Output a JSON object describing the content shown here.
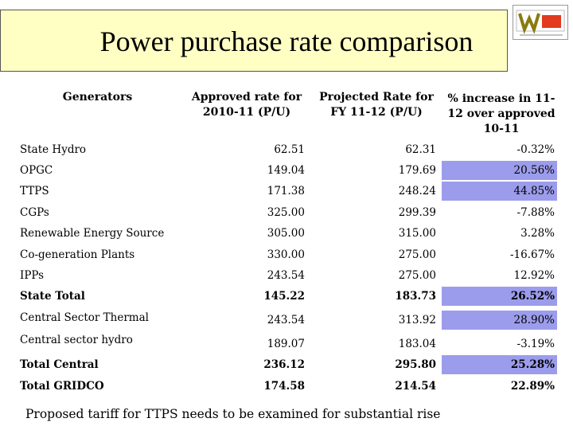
{
  "header": {
    "title": "Power purchase rate comparison"
  },
  "table": {
    "columns": [
      "Generators",
      "Approved rate for 2010-11 (P/U)",
      "Projected Rate for FY 11-12 (P/U)",
      "% increase in 11-12 over approved 10-11"
    ],
    "rows": [
      {
        "cells": [
          "State Hydro",
          "62.51",
          "62.31",
          "-0.32%"
        ],
        "bold": false,
        "highlight": false
      },
      {
        "cells": [
          "OPGC",
          "149.04",
          "179.69",
          "20.56%"
        ],
        "bold": false,
        "highlight": true
      },
      {
        "cells": [
          "TTPS",
          "171.38",
          "248.24",
          "44.85%"
        ],
        "bold": false,
        "highlight": true
      },
      {
        "cells": [
          "CGPs",
          "325.00",
          "299.39",
          "-7.88%"
        ],
        "bold": false,
        "highlight": false
      },
      {
        "cells": [
          "Renewable Energy Source",
          "305.00",
          "315.00",
          "3.28%"
        ],
        "bold": false,
        "highlight": false
      },
      {
        "cells": [
          "Co-generation Plants",
          "330.00",
          "275.00",
          "-16.67%"
        ],
        "bold": false,
        "highlight": false
      },
      {
        "cells": [
          "IPPs",
          "243.54",
          "275.00",
          "12.92%"
        ],
        "bold": false,
        "highlight": false
      },
      {
        "cells": [
          "State Total",
          "145.22",
          "183.73",
          "26.52%"
        ],
        "bold": true,
        "highlight": true
      },
      {
        "cells": [
          "Central Sector Thermal",
          "243.54",
          "313.92",
          "28.90%"
        ],
        "bold": false,
        "highlight": true
      },
      {
        "cells": [
          "Central sector hydro",
          "189.07",
          "183.04",
          "-3.19%"
        ],
        "bold": false,
        "highlight": false
      },
      {
        "cells": [
          "Total Central",
          "236.12",
          "295.80",
          "25.28%"
        ],
        "bold": true,
        "highlight": true
      },
      {
        "cells": [
          "Total GRIDCO",
          "174.58",
          "214.54",
          "22.89%"
        ],
        "bold": true,
        "highlight": false
      }
    ]
  },
  "footer": {
    "note": "Proposed tariff for TTPS needs to be examined for substantial rise"
  }
}
